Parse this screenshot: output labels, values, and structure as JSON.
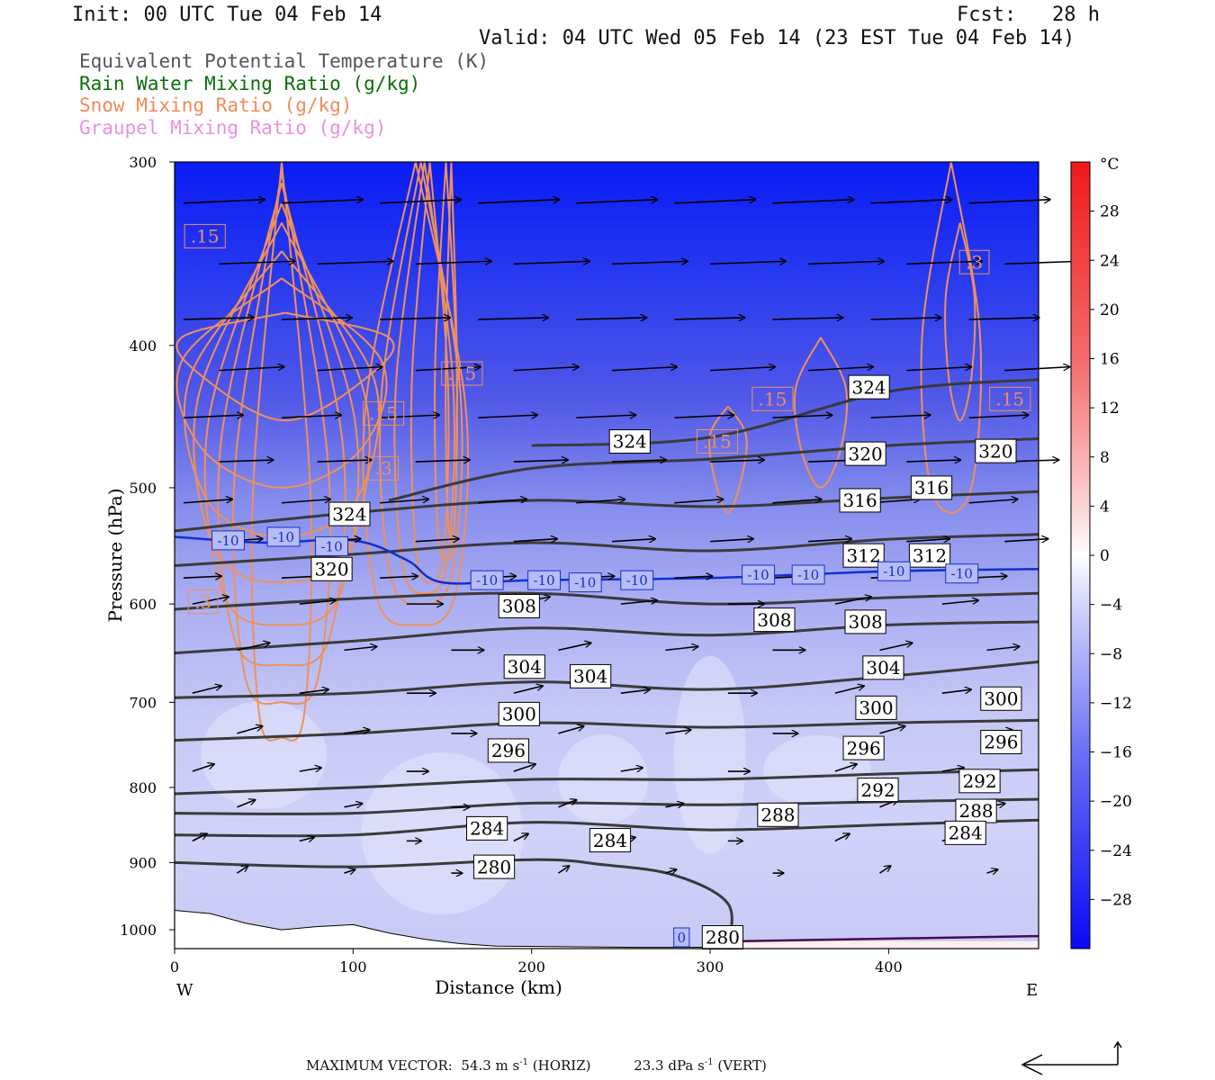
{
  "header": {
    "init": "Init: 00 UTC Tue 04 Feb 14",
    "fcst": "Fcst:   28 h",
    "valid": "Valid: 04 UTC Wed 05 Feb 14 (23 EST Tue 04 Feb 14)"
  },
  "fields": [
    {
      "label": "Equivalent Potential Temperature (K)",
      "color": "#555555"
    },
    {
      "label": "Rain Water Mixing Ratio (g/kg)",
      "color": "#0a6e0a"
    },
    {
      "label": "Snow Mixing Ratio (g/kg)",
      "color": "#f08a5a"
    },
    {
      "label": "Graupel Mixing Ratio (g/kg)",
      "color": "#e890e0"
    }
  ],
  "footer": {
    "label": "MAXIMUM VECTOR:",
    "horiz_value": "54.3 m s",
    "horiz_tag": "(HORIZ)",
    "vert_value": "23.3 dPa s",
    "vert_tag": "(VERT)",
    "exp": "-1"
  },
  "chart_data": {
    "type": "cross-section",
    "xlabel": "Distance (km)",
    "ylabel": "Pressure (hPa)",
    "xlim": [
      0,
      484
    ],
    "ylim": [
      1030,
      300
    ],
    "y_scale": "log",
    "x_ticks": [
      0,
      100,
      200,
      300,
      400
    ],
    "y_ticks": [
      300,
      400,
      500,
      600,
      700,
      800,
      900,
      1000
    ],
    "x_end_labels": {
      "left": "W",
      "right": "E"
    },
    "colorbar": {
      "unit": "°C",
      "ticks": [
        28,
        24,
        20,
        16,
        12,
        8,
        4,
        0,
        -4,
        -8,
        -12,
        -16,
        -20,
        -24,
        -28
      ],
      "range": [
        -32,
        32
      ]
    },
    "theta_e_contours": [
      {
        "value": 280,
        "p_at": [
          [
            0,
            900
          ],
          [
            100,
            906
          ],
          [
            200,
            896
          ],
          [
            240,
            903
          ],
          [
            280,
            918
          ],
          [
            310,
            960
          ],
          [
            310,
            1030
          ]
        ]
      },
      {
        "value": 284,
        "p_at": [
          [
            0,
            862
          ],
          [
            100,
            862
          ],
          [
            200,
            845
          ],
          [
            300,
            855
          ],
          [
            400,
            848
          ],
          [
            484,
            842
          ]
        ]
      },
      {
        "value": 288,
        "p_at": [
          [
            0,
            833
          ],
          [
            100,
            833
          ],
          [
            200,
            820
          ],
          [
            300,
            822
          ],
          [
            400,
            818
          ],
          [
            484,
            815
          ]
        ]
      },
      {
        "value": 292,
        "p_at": [
          [
            0,
            808
          ],
          [
            100,
            800
          ],
          [
            200,
            790
          ],
          [
            300,
            790
          ],
          [
            400,
            783
          ],
          [
            484,
            778
          ]
        ]
      },
      {
        "value": 296,
        "p_at": [
          [
            0,
            743
          ],
          [
            100,
            735
          ],
          [
            200,
            723
          ],
          [
            300,
            728
          ],
          [
            400,
            723
          ],
          [
            484,
            720
          ]
        ]
      },
      {
        "value": 300,
        "p_at": [
          [
            0,
            695
          ],
          [
            100,
            690
          ],
          [
            200,
            678
          ],
          [
            300,
            686
          ],
          [
            400,
            672
          ],
          [
            484,
            657
          ]
        ]
      },
      {
        "value": 304,
        "p_at": [
          [
            0,
            648
          ],
          [
            100,
            636
          ],
          [
            200,
            623
          ],
          [
            300,
            630
          ],
          [
            400,
            620
          ],
          [
            484,
            617
          ]
        ]
      },
      {
        "value": 308,
        "p_at": [
          [
            0,
            605
          ],
          [
            100,
            595
          ],
          [
            200,
            590
          ],
          [
            300,
            600
          ],
          [
            400,
            594
          ],
          [
            484,
            590
          ]
        ]
      },
      {
        "value": 312,
        "p_at": [
          [
            0,
            565
          ],
          [
            100,
            555
          ],
          [
            200,
            545
          ],
          [
            300,
            552
          ],
          [
            400,
            542
          ],
          [
            484,
            538
          ]
        ]
      },
      {
        "value": 316,
        "p_at": [
          [
            0,
            535
          ],
          [
            100,
            520
          ],
          [
            200,
            510
          ],
          [
            300,
            515
          ],
          [
            400,
            508
          ],
          [
            484,
            503
          ]
        ]
      },
      {
        "value": 320,
        "p_at": [
          [
            120,
            510
          ],
          [
            200,
            485
          ],
          [
            300,
            478
          ],
          [
            400,
            468
          ],
          [
            484,
            463
          ]
        ]
      },
      {
        "value": 324,
        "p_at": [
          [
            200,
            468
          ],
          [
            300,
            462
          ],
          [
            400,
            430
          ],
          [
            484,
            422
          ]
        ]
      }
    ],
    "theta_e_labels": [
      {
        "text": "324",
        "x": 98,
        "p": 521
      },
      {
        "text": "320",
        "x": 88,
        "p": 568
      },
      {
        "text": "308",
        "x": 193,
        "p": 602
      },
      {
        "text": "304",
        "x": 196,
        "p": 662
      },
      {
        "text": "304",
        "x": 233,
        "p": 672
      },
      {
        "text": "300",
        "x": 193,
        "p": 713
      },
      {
        "text": "296",
        "x": 187,
        "p": 755
      },
      {
        "text": "284",
        "x": 175,
        "p": 853
      },
      {
        "text": "284",
        "x": 244,
        "p": 869
      },
      {
        "text": "280",
        "x": 179,
        "p": 906
      },
      {
        "text": "324",
        "x": 255,
        "p": 465
      },
      {
        "text": "324",
        "x": 389,
        "p": 427
      },
      {
        "text": "320",
        "x": 387,
        "p": 474
      },
      {
        "text": "320",
        "x": 460,
        "p": 472
      },
      {
        "text": "316",
        "x": 384,
        "p": 510
      },
      {
        "text": "316",
        "x": 424,
        "p": 500
      },
      {
        "text": "312",
        "x": 386,
        "p": 556
      },
      {
        "text": "312",
        "x": 423,
        "p": 556
      },
      {
        "text": "308",
        "x": 336,
        "p": 615
      },
      {
        "text": "308",
        "x": 387,
        "p": 617
      },
      {
        "text": "304",
        "x": 397,
        "p": 663
      },
      {
        "text": "300",
        "x": 393,
        "p": 706
      },
      {
        "text": "300",
        "x": 463,
        "p": 696
      },
      {
        "text": "296",
        "x": 386,
        "p": 752
      },
      {
        "text": "296",
        "x": 463,
        "p": 745
      },
      {
        "text": "292",
        "x": 394,
        "p": 803
      },
      {
        "text": "292",
        "x": 451,
        "p": 792
      },
      {
        "text": "288",
        "x": 338,
        "p": 835
      },
      {
        "text": "288",
        "x": 449,
        "p": 830
      },
      {
        "text": "284",
        "x": 443,
        "p": 859
      },
      {
        "text": "280",
        "x": 307,
        "p": 1012
      }
    ],
    "temp_minus10_contour": {
      "value": -10,
      "color": "#1030d0",
      "p_at": [
        [
          0,
          540
        ],
        [
          50,
          545
        ],
        [
          100,
          543
        ],
        [
          130,
          560
        ],
        [
          150,
          580
        ],
        [
          200,
          578
        ],
        [
          300,
          576
        ],
        [
          400,
          570
        ],
        [
          484,
          568
        ]
      ]
    },
    "temp_labels": [
      {
        "text": "-10",
        "x": 30,
        "p": 543
      },
      {
        "text": "-10",
        "x": 61,
        "p": 540
      },
      {
        "text": "-10",
        "x": 88,
        "p": 548
      },
      {
        "text": "-10",
        "x": 175,
        "p": 578
      },
      {
        "text": "-10",
        "x": 207,
        "p": 578
      },
      {
        "text": "-10",
        "x": 230,
        "p": 580
      },
      {
        "text": "-10",
        "x": 259,
        "p": 578
      },
      {
        "text": "-10",
        "x": 327,
        "p": 573
      },
      {
        "text": "-10",
        "x": 355,
        "p": 573
      },
      {
        "text": "-10",
        "x": 403,
        "p": 570
      },
      {
        "text": "-10",
        "x": 441,
        "p": 572
      },
      {
        "text": "0",
        "x": 284,
        "p": 1012
      }
    ],
    "snow_labels": [
      {
        "text": ".15",
        "x": 17,
        "p": 337
      },
      {
        "text": ".15",
        "x": 161,
        "p": 418
      },
      {
        "text": ".15",
        "x": 117,
        "p": 445
      },
      {
        "text": ".3",
        "x": 117,
        "p": 485
      },
      {
        "text": ".3",
        "x": 16,
        "p": 598
      },
      {
        "text": ".15",
        "x": 335,
        "p": 435
      },
      {
        "text": ".15",
        "x": 304,
        "p": 465
      },
      {
        "text": ".3",
        "x": 448,
        "p": 351
      },
      {
        "text": ".15",
        "x": 468,
        "p": 435
      }
    ],
    "wind_vectors_note": "storm-relative circulation vectors (horizontal km/hPa)",
    "max_vector": {
      "horiz_m_s": 54.3,
      "vert_dPa_s": 23.3
    }
  }
}
